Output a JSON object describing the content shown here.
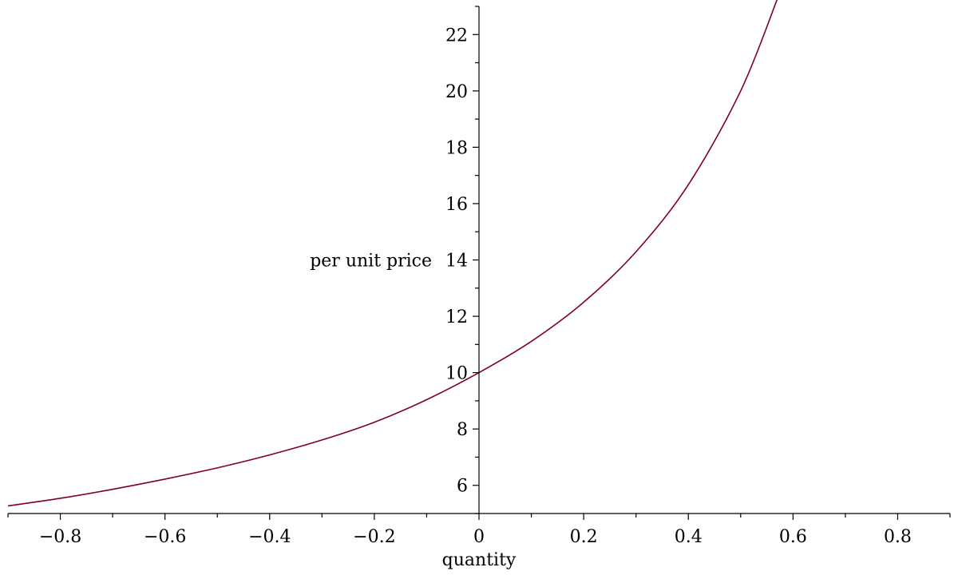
{
  "chart_data": {
    "type": "line",
    "title": "",
    "xlabel": "quantity",
    "ylabel": "per unit price",
    "xlim": [
      -0.9,
      0.9
    ],
    "ylim": [
      5,
      23
    ],
    "x_ticks": [
      -0.8,
      -0.6,
      -0.4,
      -0.2,
      0,
      0.2,
      0.4,
      0.6,
      0.8
    ],
    "x_tick_labels": [
      "−0.8",
      "−0.6",
      "−0.4",
      "−0.2",
      "0",
      "0.2",
      "0.4",
      "0.6",
      "0.8"
    ],
    "y_ticks": [
      6,
      8,
      10,
      12,
      14,
      16,
      18,
      20,
      22
    ],
    "y_tick_labels": [
      "6",
      "8",
      "10",
      "12",
      "14",
      "16",
      "18",
      "20",
      "22"
    ],
    "grid": false,
    "series": [
      {
        "color": "#800020",
        "x": [
          -0.9,
          -0.8,
          -0.7,
          -0.6,
          -0.5,
          -0.4,
          -0.3,
          -0.2,
          -0.1,
          0,
          0.1,
          0.2,
          0.3,
          0.4,
          0.5,
          0.57
        ],
        "y": [
          5.27,
          5.54,
          5.86,
          6.22,
          6.62,
          7.08,
          7.61,
          8.24,
          9.04,
          10.0,
          11.11,
          12.5,
          14.29,
          16.67,
          20.0,
          23.26
        ]
      }
    ]
  }
}
